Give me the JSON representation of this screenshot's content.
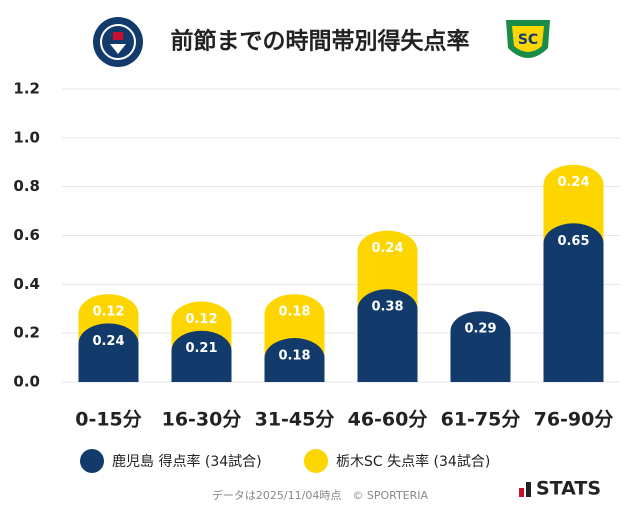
{
  "chart_data": {
    "type": "bar",
    "stacked": true,
    "title": "前節までの時間帯別得失点率",
    "categories": [
      "0-15分",
      "16-30分",
      "31-45分",
      "46-60分",
      "61-75分",
      "76-90分"
    ],
    "series": [
      {
        "name": "鹿児島 得点率 (34試合)",
        "color": "#123a6b",
        "values": [
          0.24,
          0.21,
          0.18,
          0.38,
          0.29,
          0.65
        ]
      },
      {
        "name": "栃木SC 失点率 (34試合)",
        "color": "#fdd600",
        "values": [
          0.12,
          0.12,
          0.18,
          0.24,
          null,
          0.24
        ]
      }
    ],
    "ylim": [
      0,
      1.2
    ],
    "yticks": [
      {
        "value": 0,
        "label": "0.0"
      },
      0.2,
      0.4,
      0.6,
      0.8,
      {
        "value": 1,
        "label": "1.0"
      },
      1.2
    ],
    "grid": true,
    "footnote": "データは2025/11/04時点　© SPORTERIA",
    "brand": "STATS"
  }
}
